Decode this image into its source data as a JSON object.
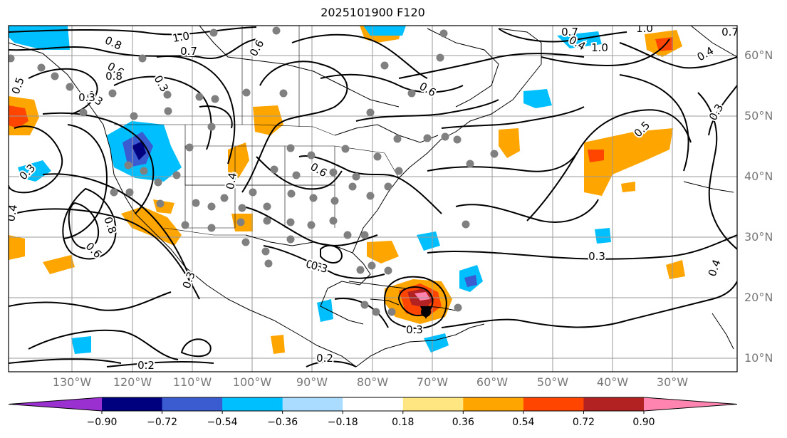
{
  "title": "2025101900 F120",
  "lat_labels": [
    "60°N",
    "50°N",
    "40°N",
    "30°N",
    "20°N",
    "10°N"
  ],
  "lon_labels": [
    "130°W",
    "120°W",
    "110°W",
    "100°W",
    "90°W",
    "80°W",
    "70°W",
    "60°W",
    "50°W",
    "40°W",
    "30°W"
  ],
  "contour_labels": [
    "1.0",
    "0.8",
    "0.6",
    "0.3",
    "0.7",
    "0.8",
    "0.6",
    "0.7",
    "1.0",
    "0.7",
    "1.0",
    "0.4",
    "0.6",
    "0.5",
    "0.3",
    "0.3",
    "0.3",
    "0.4",
    "0.6",
    "0.4",
    "0.3",
    "0.5",
    "0.3",
    "0.4",
    "0.8",
    "0.6",
    "0.3",
    "0.3",
    "0.3",
    "0.3",
    "0.4",
    "0.2",
    "0.2"
  ],
  "colorbar": {
    "ticks": [
      "−0.90",
      "−0.72",
      "−0.54",
      "−0.36",
      "−0.18",
      "0.18",
      "0.36",
      "0.54",
      "0.72",
      "0.90"
    ],
    "colors": [
      "#9b30d0",
      "#00007f",
      "#3b5bd1",
      "#00bfff",
      "#aadcff",
      "#ffffff",
      "#ffe680",
      "#ffa500",
      "#ff4500",
      "#b22222",
      "#ff85b0"
    ]
  }
}
